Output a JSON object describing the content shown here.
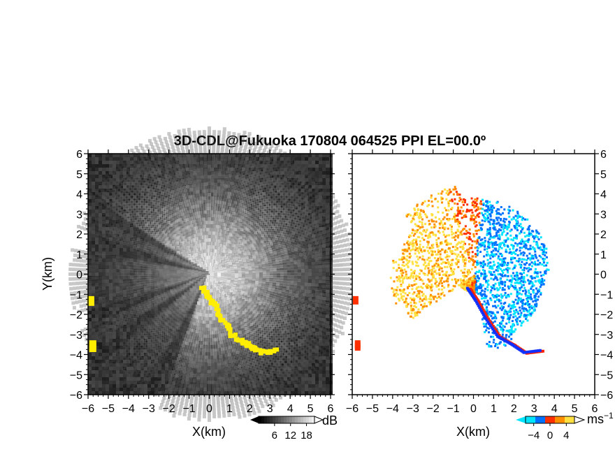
{
  "chart_data": {
    "title": "3D-CDL@Fukuoka 170804 064525 PPI EL=00.0º",
    "panels": [
      {
        "type": "heatmap",
        "name": "intensity",
        "xlabel": "X(km)",
        "ylabel": "Y(km)",
        "xlim": [
          -6,
          6
        ],
        "ylim": [
          -6,
          6
        ],
        "ticks": [
          "−6",
          "−5",
          "−4",
          "−3",
          "−2",
          "−1",
          "0",
          "1",
          "2",
          "3",
          "4",
          "5",
          "6"
        ],
        "background": "#2c2c2c",
        "overlay_color": "#ffee00",
        "colorbar": {
          "unit": "dB",
          "tick_labels": [
            "6",
            "12",
            "18"
          ],
          "range": [
            0,
            21
          ]
        }
      },
      {
        "type": "heatmap",
        "name": "doppler_velocity",
        "xlabel": "X(km)",
        "xlim": [
          -6,
          6
        ],
        "ylim": [
          -6,
          6
        ],
        "ticks": [
          "−6",
          "−5",
          "−4",
          "−3",
          "−2",
          "−1",
          "0",
          "1",
          "2",
          "3",
          "4",
          "5",
          "6"
        ],
        "right_ticks": [
          "6",
          "5",
          "4",
          "3",
          "2",
          "1",
          "0",
          "−1",
          "−2",
          "−3",
          "−4",
          "−5",
          "−6"
        ],
        "colorbar": {
          "unit": "ms",
          "unit_exp": "−1",
          "tick_labels": [
            "−4",
            "0",
            "4"
          ],
          "range": [
            -6,
            6
          ],
          "colors": [
            "#00e5ff",
            "#0070ff",
            "#ff3000",
            "#ff9000",
            "#ffe040"
          ]
        }
      }
    ],
    "features": {
      "wedge_azimuths_deg": [
        150,
        165,
        200,
        215,
        245
      ],
      "strong_echo_outline_km": [
        [
          -0.3,
          -0.7
        ],
        [
          0.1,
          -1.3
        ],
        [
          0.6,
          -2.2
        ],
        [
          1.2,
          -3.1
        ],
        [
          1.9,
          -3.5
        ],
        [
          2.5,
          -3.9
        ],
        [
          3.3,
          -3.8
        ]
      ],
      "edge_returns_km": [
        [
          -5.9,
          -1.3
        ],
        [
          -5.8,
          -3.5
        ],
        [
          -5.8,
          -3.6
        ]
      ]
    }
  }
}
